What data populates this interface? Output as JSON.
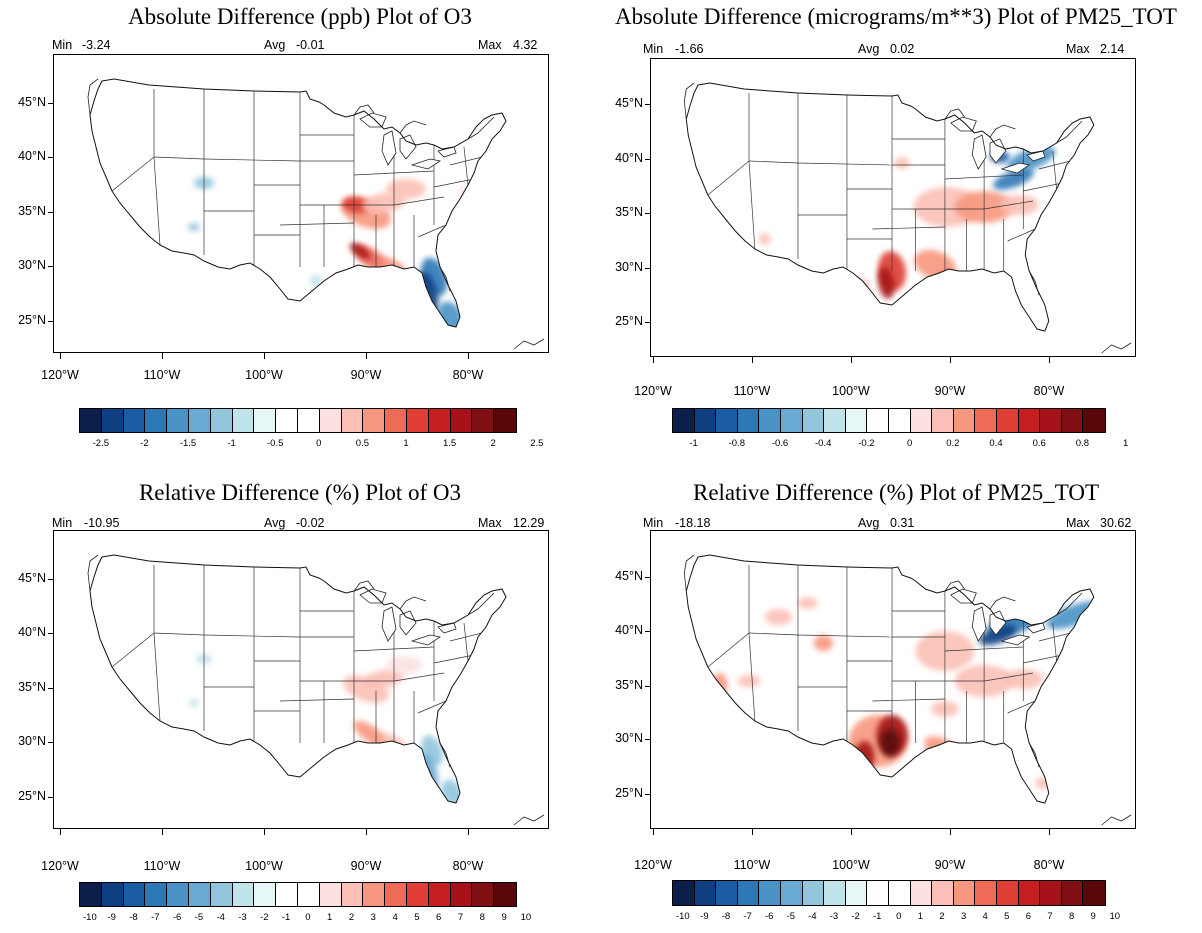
{
  "palette": [
    "#0b1f4a",
    "#0d3f82",
    "#1a5da4",
    "#2f78b6",
    "#4a93c7",
    "#6aa9d2",
    "#91c6dd",
    "#c1e3ea",
    "#e7f6f7",
    "#ffffff",
    "#ffffff",
    "#fde1e1",
    "#fbc0b5",
    "#f8977f",
    "#ef6b58",
    "#de3e33",
    "#c5201f",
    "#a51219",
    "#801013",
    "#5a0709"
  ],
  "panels": [
    {
      "title": "Absolute Difference (ppb) Plot of O3",
      "min_label": "Min",
      "min_value": "-3.24",
      "avg_label": "Avg",
      "avg_value": "-0.01",
      "max_label": "Max",
      "max_value": "4.32",
      "lat_ticks": [
        "45°N",
        "40°N",
        "35°N",
        "30°N",
        "25°N"
      ],
      "lon_ticks": [
        "120°W",
        "110°W",
        "100°W",
        "90°W",
        "80°W"
      ],
      "colorbar_labels": [
        "-2.5",
        "-2",
        "-1.5",
        "-1",
        "-0.5",
        "0",
        "0.5",
        "1",
        "1.5",
        "2",
        "2.5"
      ]
    },
    {
      "title": "Absolute Difference (micrograms/m**3) Plot of PM25_TOT",
      "min_label": "Min",
      "min_value": "-1.66",
      "avg_label": "Avg",
      "avg_value": "0.02",
      "max_label": "Max",
      "max_value": "2.14",
      "lat_ticks": [
        "45°N",
        "40°N",
        "35°N",
        "30°N",
        "25°N"
      ],
      "lon_ticks": [
        "120°W",
        "110°W",
        "100°W",
        "90°W",
        "80°W"
      ],
      "colorbar_labels": [
        "-1",
        "-0.8",
        "-0.6",
        "-0.4",
        "-0.2",
        "0",
        "0.2",
        "0.4",
        "0.6",
        "0.8",
        "1"
      ]
    },
    {
      "title": "Relative Difference (%) Plot of O3",
      "min_label": "Min",
      "min_value": "-10.95",
      "avg_label": "Avg",
      "avg_value": "-0.02",
      "max_label": "Max",
      "max_value": "12.29",
      "lat_ticks": [
        "45°N",
        "40°N",
        "35°N",
        "30°N",
        "25°N"
      ],
      "lon_ticks": [
        "120°W",
        "110°W",
        "100°W",
        "90°W",
        "80°W"
      ],
      "colorbar_labels": [
        "-10",
        "-9",
        "-8",
        "-7",
        "-6",
        "-5",
        "-4",
        "-3",
        "-2",
        "-1",
        "0",
        "1",
        "2",
        "3",
        "4",
        "5",
        "6",
        "7",
        "8",
        "9",
        "10"
      ]
    },
    {
      "title": "Relative Difference (%) Plot of PM25_TOT",
      "min_label": "Min",
      "min_value": "-18.18",
      "avg_label": "Avg",
      "avg_value": "0.31",
      "max_label": "Max",
      "max_value": "30.62",
      "lat_ticks": [
        "45°N",
        "40°N",
        "35°N",
        "30°N",
        "25°N"
      ],
      "lon_ticks": [
        "120°W",
        "110°W",
        "100°W",
        "90°W",
        "80°W"
      ],
      "colorbar_labels": [
        "-10",
        "-9",
        "-8",
        "-7",
        "-6",
        "-5",
        "-4",
        "-3",
        "-2",
        "-1",
        "0",
        "1",
        "2",
        "3",
        "4",
        "5",
        "6",
        "7",
        "8",
        "9",
        "10"
      ]
    }
  ]
}
